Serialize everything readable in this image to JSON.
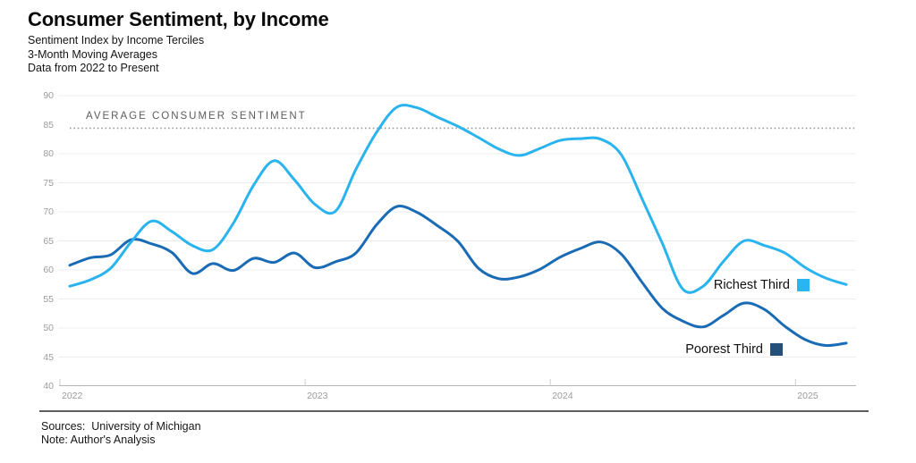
{
  "header": {
    "title": "Consumer Sentiment, by Income",
    "subtitle1": "Sentiment Index by Income Terciles",
    "subtitle2": "3-Month Moving Averages",
    "subtitle3": "Data from 2022 to Present"
  },
  "footer": {
    "sources": "Sources:  University of Michigan",
    "note": "Note: Author's Analysis"
  },
  "legend": [
    {
      "label": "Richest Third",
      "swatch": "#29b5f2"
    },
    {
      "label": "Poorest Third",
      "swatch": "#24507a"
    }
  ],
  "chart_data": {
    "type": "line",
    "title": "Consumer Sentiment, by Income",
    "x_unit": "month",
    "x_start": "2022-01",
    "x_end": "2025-03",
    "x_tick_labels": [
      "2022",
      "2023",
      "2024",
      "2025"
    ],
    "year_tick_months": [
      0,
      12,
      24,
      36
    ],
    "y_ticks": [
      40,
      45,
      50,
      55,
      60,
      65,
      70,
      75,
      80,
      85,
      90
    ],
    "gridline_ticks": [
      45,
      50,
      55,
      60,
      65,
      70,
      75,
      80,
      90
    ],
    "ylim": [
      40,
      90
    ],
    "grid": true,
    "legend_position": "inline-right",
    "average_line": {
      "label": "AVERAGE CONSUMER SENTIMENT",
      "value": 84.4,
      "style": "dotted"
    },
    "series": [
      {
        "name": "Richest Third",
        "color": "#29b3ef",
        "values": [
          57.2,
          58.3,
          60.3,
          64.8,
          68.4,
          66.6,
          64.2,
          63.5,
          68.0,
          74.6,
          78.8,
          75.5,
          71.3,
          70.1,
          77.3,
          83.6,
          88.0,
          87.9,
          86.3,
          84.7,
          82.8,
          80.8,
          79.7,
          80.9,
          82.3,
          82.6,
          82.5,
          79.8,
          72.3,
          64.6,
          56.7,
          57.2,
          61.5,
          65.0,
          64.2,
          62.9,
          60.4,
          58.6,
          57.5
        ]
      },
      {
        "name": "Poorest Third",
        "color": "#1a6bb5",
        "values": [
          60.8,
          62.1,
          62.6,
          65.2,
          64.5,
          63.0,
          59.4,
          61.1,
          59.9,
          62.0,
          61.3,
          62.9,
          60.4,
          61.4,
          62.9,
          67.7,
          70.9,
          69.9,
          67.6,
          64.9,
          60.3,
          58.5,
          58.8,
          60.1,
          62.2,
          63.7,
          64.8,
          62.7,
          57.9,
          53.4,
          51.2,
          50.2,
          52.2,
          54.3,
          53.2,
          50.3,
          48.0,
          47.0,
          47.4
        ]
      }
    ]
  }
}
